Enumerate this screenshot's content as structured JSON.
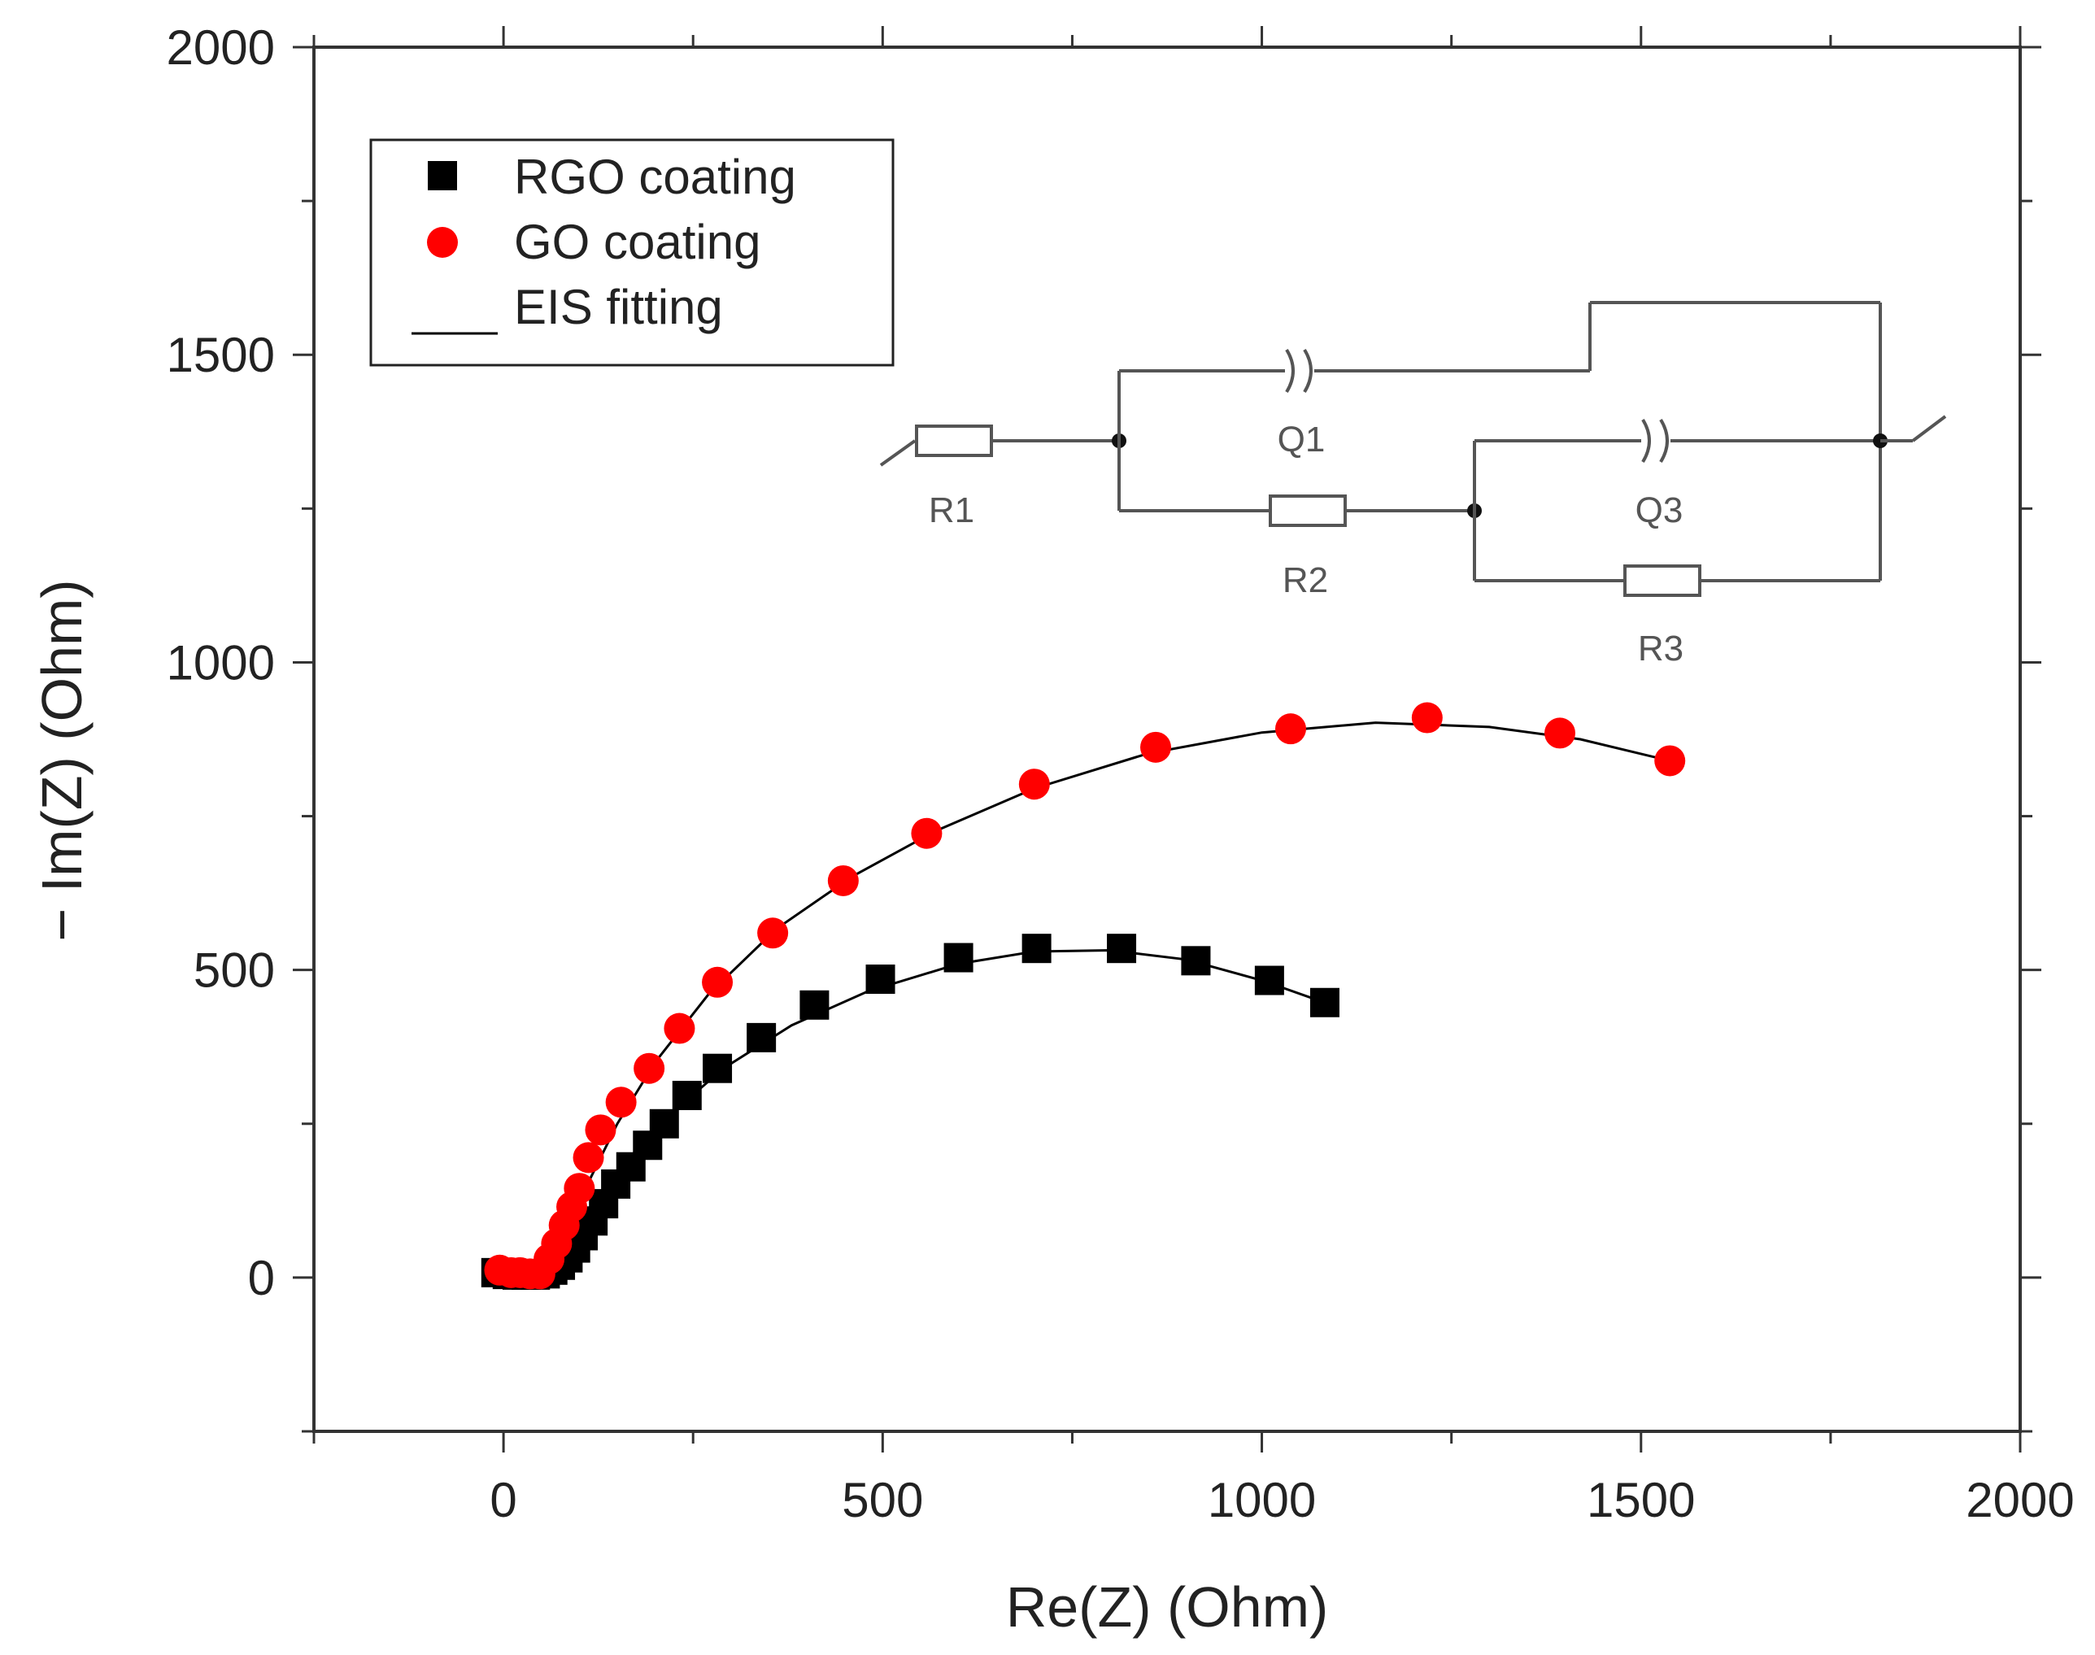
{
  "chart_data": {
    "type": "scatter",
    "title": "",
    "xlabel": "Re(Z) (Ohm)",
    "ylabel": "− Im(Z) (Ohm)",
    "xlim": [
      -250,
      2000
    ],
    "ylim": [
      -250,
      2000
    ],
    "x_ticks": [
      0,
      500,
      1000,
      1500,
      2000
    ],
    "y_ticks": [
      0,
      500,
      1000,
      1500,
      2000
    ],
    "grid": false,
    "legend_position": "top-left",
    "series": [
      {
        "name": "RGO coating",
        "marker": "square",
        "color": "#000000",
        "points": [
          [
            -10,
            8
          ],
          [
            5,
            5
          ],
          [
            18,
            4
          ],
          [
            30,
            4
          ],
          [
            42,
            4
          ],
          [
            55,
            6
          ],
          [
            65,
            12
          ],
          [
            75,
            20
          ],
          [
            85,
            32
          ],
          [
            95,
            48
          ],
          [
            105,
            68
          ],
          [
            118,
            92
          ],
          [
            132,
            120
          ],
          [
            148,
            152
          ],
          [
            168,
            180
          ],
          [
            190,
            215
          ],
          [
            212,
            250
          ],
          [
            242,
            296
          ],
          [
            282,
            340
          ],
          [
            340,
            390
          ],
          [
            410,
            443
          ],
          [
            497,
            485
          ],
          [
            600,
            520
          ],
          [
            703,
            535
          ],
          [
            815,
            535
          ],
          [
            913,
            515
          ],
          [
            1010,
            483
          ],
          [
            1083,
            447
          ]
        ]
      },
      {
        "name": "GO coating",
        "marker": "circle",
        "color": "#ff0000",
        "points": [
          [
            -5,
            12
          ],
          [
            10,
            8
          ],
          [
            22,
            8
          ],
          [
            35,
            6
          ],
          [
            48,
            6
          ],
          [
            60,
            30
          ],
          [
            70,
            55
          ],
          [
            80,
            85
          ],
          [
            90,
            115
          ],
          [
            100,
            145
          ],
          [
            112,
            195
          ],
          [
            128,
            240
          ],
          [
            155,
            285
          ],
          [
            192,
            340
          ],
          [
            232,
            405
          ],
          [
            282,
            480
          ],
          [
            355,
            560
          ],
          [
            448,
            645
          ],
          [
            558,
            722
          ],
          [
            700,
            802
          ],
          [
            860,
            862
          ],
          [
            1038,
            892
          ],
          [
            1218,
            910
          ],
          [
            1393,
            885
          ],
          [
            1538,
            840
          ]
        ]
      },
      {
        "name": "EIS fitting",
        "marker": "line",
        "color": "#000000",
        "fits": [
          [
            [
              55,
              2
            ],
            [
              75,
              30
            ],
            [
              100,
              80
            ],
            [
              130,
              140
            ],
            [
              170,
              200
            ],
            [
              220,
              265
            ],
            [
              290,
              340
            ],
            [
              380,
              410
            ],
            [
              480,
              465
            ],
            [
              600,
              510
            ],
            [
              700,
              530
            ],
            [
              800,
              532
            ],
            [
              900,
              517
            ],
            [
              1000,
              483
            ],
            [
              1083,
              447
            ]
          ],
          [
            [
              60,
              2
            ],
            [
              80,
              60
            ],
            [
              110,
              150
            ],
            [
              150,
              250
            ],
            [
              200,
              350
            ],
            [
              270,
              460
            ],
            [
              360,
              567
            ],
            [
              460,
              652
            ],
            [
              570,
              726
            ],
            [
              700,
              795
            ],
            [
              850,
              852
            ],
            [
              1000,
              886
            ],
            [
              1150,
              902
            ],
            [
              1300,
              895
            ],
            [
              1420,
              875
            ],
            [
              1538,
              840
            ]
          ]
        ]
      }
    ]
  },
  "inset": {
    "labels": {
      "r1": "R1",
      "q1": "Q1",
      "r2": "R2",
      "q3": "Q3",
      "r3": "R3"
    }
  },
  "colors": {
    "axis": "#333333",
    "circuit": "#555555"
  }
}
